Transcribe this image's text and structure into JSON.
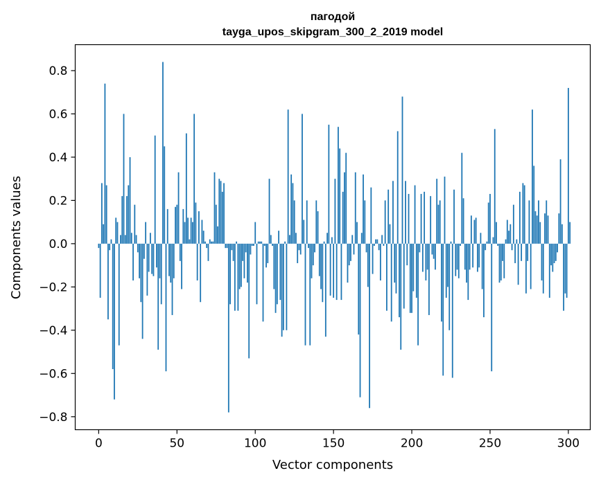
{
  "chart_data": {
    "type": "bar",
    "title": "пагодой",
    "subtitle": "tayga_upos_skipgram_300_2_2019 model",
    "xlabel": "Vector components",
    "ylabel": "Components values",
    "xlim": [
      -15,
      314
    ],
    "ylim": [
      -0.86,
      0.92
    ],
    "xticks": [
      0,
      50,
      100,
      150,
      200,
      250,
      300
    ],
    "yticks": [
      -0.8,
      -0.6,
      -0.4,
      -0.2,
      0.0,
      0.2,
      0.4,
      0.6,
      0.8
    ],
    "ytick_labels": [
      "−0.8",
      "−0.6",
      "−0.4",
      "−0.2",
      "0.0",
      "0.2",
      "0.4",
      "0.6",
      "0.8"
    ],
    "grid": false,
    "bar_color": "#1f77b4",
    "values": [
      -0.02,
      -0.25,
      0.28,
      0.09,
      0.74,
      0.27,
      -0.35,
      -0.03,
      0.02,
      -0.58,
      -0.72,
      0.12,
      0.1,
      -0.47,
      0.04,
      0.22,
      0.6,
      0.04,
      0.22,
      0.27,
      0.4,
      0.05,
      -0.17,
      0.18,
      0.04,
      -0.04,
      -0.16,
      -0.27,
      -0.44,
      -0.07,
      0.1,
      -0.24,
      -0.13,
      0.05,
      -0.14,
      -0.15,
      0.5,
      -0.11,
      -0.49,
      -0.16,
      -0.28,
      0.84,
      0.45,
      -0.59,
      0.16,
      -0.15,
      -0.18,
      -0.33,
      -0.16,
      0.17,
      0.18,
      0.33,
      -0.08,
      -0.21,
      0.16,
      0.1,
      0.51,
      0.12,
      0.02,
      0.12,
      0.1,
      0.6,
      0.19,
      -0.17,
      0.15,
      -0.27,
      0.11,
      0.06,
      0.01,
      -0.02,
      -0.08,
      0.02,
      0.01,
      0.01,
      0.33,
      0.18,
      0.08,
      0.3,
      0.29,
      0.24,
      0.28,
      -0.02,
      -0.02,
      -0.78,
      -0.28,
      -0.03,
      -0.08,
      -0.31,
      0.01,
      -0.31,
      -0.21,
      -0.2,
      -0.08,
      -0.16,
      -0.04,
      -0.18,
      -0.53,
      -0.05,
      -0.01,
      -0.01,
      0.1,
      -0.28,
      0.01,
      0.01,
      0.01,
      -0.36,
      -0.01,
      -0.11,
      -0.09,
      0.3,
      0.04,
      -0.01,
      -0.21,
      -0.32,
      -0.28,
      0.06,
      -0.26,
      -0.43,
      -0.4,
      0.01,
      -0.4,
      0.62,
      0.04,
      0.32,
      0.28,
      0.2,
      0.05,
      -0.09,
      -0.03,
      -0.05,
      0.6,
      0.11,
      -0.47,
      0.2,
      -0.02,
      -0.47,
      -0.16,
      -0.1,
      -0.04,
      0.2,
      0.15,
      -0.15,
      -0.21,
      -0.27,
      0.01,
      -0.43,
      0.05,
      0.55,
      -0.24,
      0.03,
      -0.25,
      0.3,
      -0.26,
      0.54,
      0.44,
      -0.26,
      0.24,
      0.33,
      0.42,
      -0.18,
      -0.1,
      -0.08,
      0.04,
      -0.05,
      0.33,
      0.1,
      -0.42,
      -0.71,
      0.05,
      0.32,
      0.2,
      -0.04,
      -0.2,
      -0.76,
      0.26,
      -0.14,
      -0.01,
      0.02,
      0.02,
      -0.03,
      -0.17,
      0.04,
      -0.01,
      0.2,
      -0.31,
      0.25,
      0.09,
      -0.36,
      0.29,
      -0.18,
      -0.23,
      0.52,
      -0.34,
      -0.49,
      0.68,
      -0.3,
      0.29,
      -0.1,
      0.23,
      -0.32,
      -0.32,
      -0.22,
      0.27,
      -0.25,
      -0.47,
      -0.04,
      0.23,
      -0.13,
      0.24,
      -0.17,
      -0.12,
      -0.33,
      0.22,
      -0.05,
      -0.07,
      -0.12,
      0.3,
      0.18,
      0.2,
      -0.36,
      -0.61,
      0.31,
      -0.25,
      -0.2,
      -0.4,
      0.01,
      -0.62,
      0.25,
      -0.15,
      -0.12,
      -0.16,
      -0.01,
      0.42,
      0.21,
      -0.12,
      -0.18,
      -0.26,
      -0.12,
      0.13,
      -0.11,
      0.11,
      0.12,
      -0.13,
      -0.11,
      0.05,
      -0.21,
      -0.34,
      -0.03,
      0.01,
      0.19,
      0.23,
      -0.59,
      0.03,
      0.53,
      0.1,
      -0.01,
      -0.18,
      -0.17,
      -0.08,
      -0.16,
      0.02,
      0.11,
      0.06,
      0.09,
      -0.03,
      0.18,
      -0.09,
      0.02,
      -0.19,
      0.24,
      -0.08,
      0.28,
      0.27,
      -0.23,
      -0.08,
      0.2,
      -0.21,
      0.62,
      0.36,
      0.15,
      0.13,
      0.2,
      0.1,
      -0.17,
      -0.23,
      0.14,
      0.2,
      0.13,
      -0.25,
      -0.1,
      -0.13,
      -0.09,
      -0.08,
      -0.04,
      0.14,
      0.39,
      0.09,
      -0.31,
      -0.23,
      -0.25,
      0.72,
      0.1
    ]
  }
}
